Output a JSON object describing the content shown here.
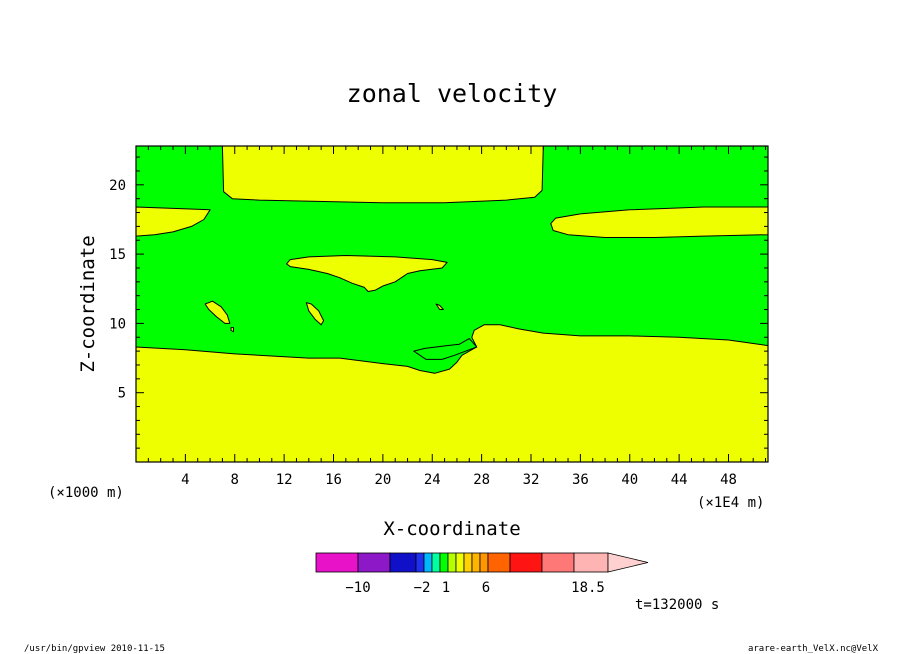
{
  "chart_data": {
    "type": "contour",
    "title": "zonal velocity",
    "xlabel": "X-coordinate",
    "ylabel": "Z-coordinate",
    "x_unit_left": "(×1000 m)",
    "x_unit_right": "(×1E4 m)",
    "xlim": [
      0,
      51.2
    ],
    "ylim": [
      0,
      22.8
    ],
    "x_ticks": [
      4,
      8,
      12,
      16,
      20,
      24,
      28,
      32,
      36,
      40,
      44,
      48
    ],
    "y_ticks": [
      5,
      10,
      15,
      20
    ],
    "field_colors": {
      "positive": "#eeff00",
      "negative": "#00ff00"
    },
    "regions": [
      {
        "name": "bottom-yellow",
        "color": "positive",
        "points": [
          [
            0,
            0
          ],
          [
            51.2,
            0
          ],
          [
            51.2,
            8.4
          ],
          [
            48,
            8.8
          ],
          [
            44,
            9.0
          ],
          [
            40,
            9.1
          ],
          [
            36,
            9.1
          ],
          [
            33,
            9.3
          ],
          [
            31,
            9.6
          ],
          [
            29.5,
            9.9
          ],
          [
            28.2,
            9.9
          ],
          [
            27.4,
            9.5
          ],
          [
            27.2,
            9.0
          ],
          [
            27.6,
            8.3
          ],
          [
            26.4,
            7.7
          ],
          [
            26,
            7.2
          ],
          [
            25.4,
            6.7
          ],
          [
            24.2,
            6.4
          ],
          [
            23,
            6.6
          ],
          [
            22,
            6.9
          ],
          [
            20,
            7.1
          ],
          [
            16.5,
            7.5
          ],
          [
            14,
            7.5
          ],
          [
            8,
            7.8
          ],
          [
            4,
            8.1
          ],
          [
            0,
            8.3
          ]
        ]
      },
      {
        "name": "lower-green-pocket",
        "color": "negative",
        "points": [
          [
            27.6,
            8.3
          ],
          [
            27.0,
            8.9
          ],
          [
            26.2,
            8.5
          ],
          [
            25.2,
            8.4
          ],
          [
            23.4,
            8.2
          ],
          [
            22.5,
            8.0
          ],
          [
            23.5,
            7.4
          ],
          [
            24.8,
            7.4
          ],
          [
            25.8,
            7.7
          ]
        ]
      },
      {
        "name": "top-center-yellow",
        "color": "positive",
        "points": [
          [
            7,
            22.8
          ],
          [
            33,
            22.8
          ],
          [
            32.9,
            19.6
          ],
          [
            32.3,
            19.1
          ],
          [
            30,
            18.9
          ],
          [
            25,
            18.7
          ],
          [
            20,
            18.7
          ],
          [
            10,
            18.9
          ],
          [
            7.8,
            19.0
          ],
          [
            7.1,
            19.5
          ]
        ]
      },
      {
        "name": "upper-left-yellow",
        "color": "positive",
        "points": [
          [
            0,
            18.4
          ],
          [
            6,
            18.2
          ],
          [
            5.5,
            17.5
          ],
          [
            4.5,
            17.0
          ],
          [
            3,
            16.6
          ],
          [
            1.5,
            16.4
          ],
          [
            0,
            16.3
          ]
        ]
      },
      {
        "name": "upper-right-yellow",
        "color": "positive",
        "points": [
          [
            51.2,
            18.4
          ],
          [
            51.2,
            16.4
          ],
          [
            46,
            16.3
          ],
          [
            42,
            16.2
          ],
          [
            38,
            16.2
          ],
          [
            35,
            16.4
          ],
          [
            33.8,
            16.7
          ],
          [
            33.6,
            17.2
          ],
          [
            34,
            17.6
          ],
          [
            36,
            17.9
          ],
          [
            40,
            18.2
          ],
          [
            46,
            18.4
          ]
        ]
      },
      {
        "name": "middle-yellow-lobe",
        "color": "positive",
        "points": [
          [
            12.2,
            14.3
          ],
          [
            12.5,
            14.6
          ],
          [
            14,
            14.8
          ],
          [
            17,
            14.9
          ],
          [
            21,
            14.8
          ],
          [
            24,
            14.6
          ],
          [
            25.2,
            14.4
          ],
          [
            24.8,
            14.0
          ],
          [
            23,
            13.8
          ],
          [
            22,
            13.6
          ],
          [
            21.5,
            13.3
          ],
          [
            21,
            13.0
          ],
          [
            20,
            12.7
          ],
          [
            19.4,
            12.4
          ],
          [
            18.8,
            12.3
          ],
          [
            18.5,
            12.6
          ],
          [
            17.5,
            12.9
          ],
          [
            16.5,
            13.3
          ],
          [
            15.5,
            13.6
          ],
          [
            14,
            13.9
          ],
          [
            12.5,
            14.1
          ]
        ]
      },
      {
        "name": "small-yellow-blob-1",
        "color": "positive",
        "points": [
          [
            5.6,
            11.4
          ],
          [
            6.2,
            11.6
          ],
          [
            6.9,
            11.2
          ],
          [
            7.4,
            10.6
          ],
          [
            7.6,
            10.0
          ],
          [
            7.2,
            10.0
          ],
          [
            6.5,
            10.5
          ],
          [
            5.9,
            11.0
          ]
        ]
      },
      {
        "name": "small-yellow-blob-2",
        "color": "positive",
        "points": [
          [
            13.8,
            11.5
          ],
          [
            14.2,
            11.4
          ],
          [
            14.8,
            10.9
          ],
          [
            15.2,
            10.2
          ],
          [
            15.0,
            9.9
          ],
          [
            14.5,
            10.3
          ],
          [
            14.0,
            10.9
          ]
        ]
      },
      {
        "name": "small-yellow-blob-3",
        "color": "positive",
        "points": [
          [
            24.3,
            11.4
          ],
          [
            24.6,
            11.3
          ],
          [
            24.9,
            11.0
          ],
          [
            24.6,
            11.0
          ]
        ]
      },
      {
        "name": "small-yellow-blob-4",
        "color": "positive",
        "points": [
          [
            7.7,
            9.7
          ],
          [
            7.9,
            9.7
          ],
          [
            7.9,
            9.4
          ],
          [
            7.7,
            9.5
          ]
        ]
      }
    ],
    "colorbar": {
      "labels": [
        "−10",
        "−2",
        "1",
        "6",
        "18.5"
      ],
      "colors": [
        "#e812c8",
        "#8c18c8",
        "#1010c8",
        "#2030f0",
        "#00b8ff",
        "#00ffa0",
        "#00ff00",
        "#b4ff00",
        "#eeff00",
        "#ffd200",
        "#ffb400",
        "#ff9600",
        "#ff6400",
        "#ff1414",
        "#ff7878",
        "#ffb4b4",
        "#ffd0d0"
      ]
    },
    "time_label": "t=132000 s"
  },
  "footer": {
    "left": "/usr/bin/gpview  2010-11-15",
    "right": "arare-earth_VelX.nc@VelX"
  }
}
